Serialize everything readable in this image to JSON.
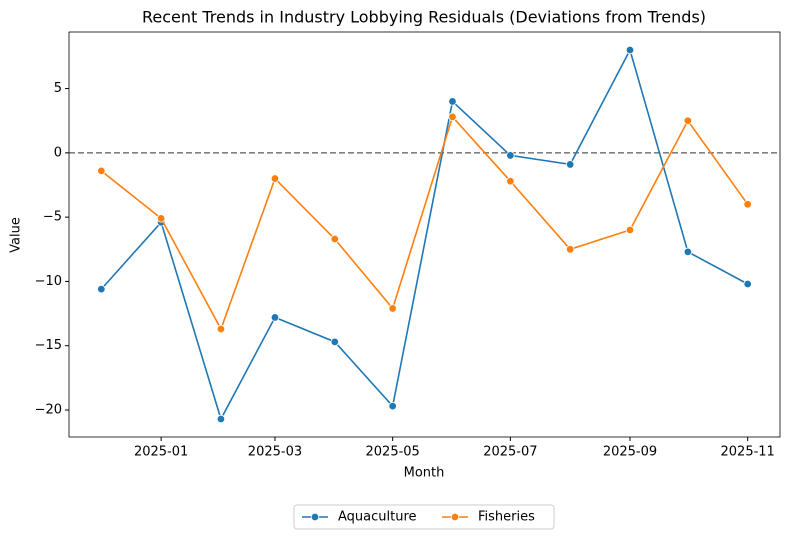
{
  "chart_data": {
    "type": "line",
    "title": "Recent Trends in Industry Lobbying Residuals (Deviations from Trends)",
    "x_label": "Month",
    "y_label": "Value",
    "x": [
      "2024-12",
      "2025-01",
      "2025-02",
      "2025-03",
      "2025-04",
      "2025-05",
      "2025-06",
      "2025-07",
      "2025-08",
      "2025-09",
      "2025-10",
      "2025-11"
    ],
    "series": [
      {
        "name": "Aquaculture",
        "color": "#1f77b4",
        "values": [
          -10.6,
          -5.4,
          -20.7,
          -12.8,
          -14.7,
          -19.7,
          4.0,
          -0.2,
          -0.9,
          8.0,
          -7.7,
          -10.2
        ]
      },
      {
        "name": "Fisheries",
        "color": "#ff7f0e",
        "values": [
          -1.4,
          -5.1,
          -13.7,
          -2.0,
          -6.7,
          -12.1,
          2.8,
          -2.2,
          -7.5,
          -6.0,
          2.5,
          -4.0
        ]
      }
    ],
    "xticks": [
      "2025-01",
      "2025-03",
      "2025-05",
      "2025-07",
      "2025-09",
      "2025-11"
    ],
    "ylim": [
      -22.1,
      9.4
    ],
    "yticks": [
      {
        "value": -20,
        "label": "−20"
      },
      {
        "value": -15,
        "label": "−15"
      },
      {
        "value": -10,
        "label": "−10"
      },
      {
        "value": -5,
        "label": "−5"
      },
      0,
      5
    ],
    "hline": 0,
    "legend": "bottom"
  }
}
